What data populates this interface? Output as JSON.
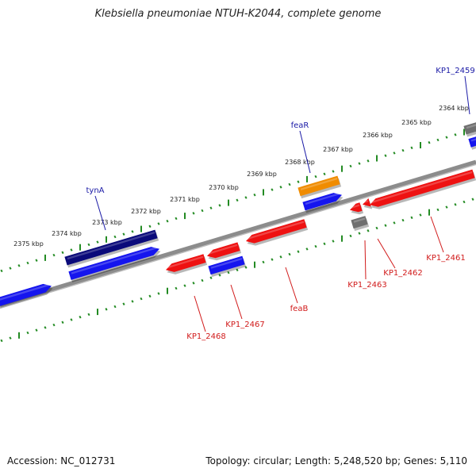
{
  "title": "Klebsiella pneumoniae NTUH-K2044, complete genome",
  "footer": {
    "accession": "Accession: NC_012731",
    "summary": "Topology: circular; Length: 5,248,520 bp; Genes: 5,110"
  },
  "colors": {
    "backbone": "#8c8c8c",
    "tick": "#238b23",
    "forward_label": "#1a1aa6",
    "reverse_label": "#d11a1a",
    "gene_blue": "#1515ee",
    "gene_navy": "#0a0a7a",
    "gene_orange": "#f08c00",
    "gene_red": "#ee1111",
    "gene_gray": "#6f6f6f",
    "tick_text": "#222222"
  },
  "ruler": {
    "labels": [
      "2375 kbp",
      "2374 kbp",
      "2373 kbp",
      "2372 kbp",
      "2371 kbp",
      "2370 kbp",
      "2369 kbp",
      "2368 kbp",
      "2367 kbp",
      "2366 kbp",
      "2365 kbp",
      "2364 kbp"
    ]
  },
  "genes": [
    {
      "id": "g1",
      "label": "",
      "strand": "+",
      "color": "gene_blue",
      "kind": "cds"
    },
    {
      "id": "g2",
      "label": "tynA",
      "strand": "+",
      "color": "gene_navy",
      "kind": "cds"
    },
    {
      "id": "g3",
      "label": "",
      "strand": "+",
      "color": "gene_blue",
      "kind": "cds"
    },
    {
      "id": "g4",
      "label": "KP1_2468",
      "strand": "-",
      "color": "gene_red",
      "kind": "cds"
    },
    {
      "id": "g5",
      "label": "KP1_2467",
      "strand": "-",
      "color": "gene_red",
      "kind": "cds"
    },
    {
      "id": "g6",
      "label": "",
      "strand": "-",
      "color": "gene_blue",
      "kind": "cds"
    },
    {
      "id": "g7",
      "label": "feaB",
      "strand": "-",
      "color": "gene_red",
      "kind": "cds"
    },
    {
      "id": "g8",
      "label": "feaR",
      "strand": "+",
      "color": "gene_orange",
      "kind": "cds"
    },
    {
      "id": "g9",
      "label": "",
      "strand": "+",
      "color": "gene_blue",
      "kind": "cds"
    },
    {
      "id": "g10",
      "label": "KP1_2463",
      "strand": "-",
      "color": "gene_red",
      "kind": "cds"
    },
    {
      "id": "g11",
      "label": "KP1_2462",
      "strand": "-",
      "color": "gene_red",
      "kind": "cds"
    },
    {
      "id": "g12",
      "label": "",
      "strand": "-",
      "color": "gene_gray",
      "kind": "cds"
    },
    {
      "id": "g13",
      "label": "KP1_2461",
      "strand": "-",
      "color": "gene_red",
      "kind": "cds"
    },
    {
      "id": "g14",
      "label": "KP1_2459",
      "strand": "+",
      "color": "gene_gray",
      "kind": "cds"
    },
    {
      "id": "g15",
      "label": "",
      "strand": "+",
      "color": "gene_blue",
      "kind": "cds"
    }
  ]
}
